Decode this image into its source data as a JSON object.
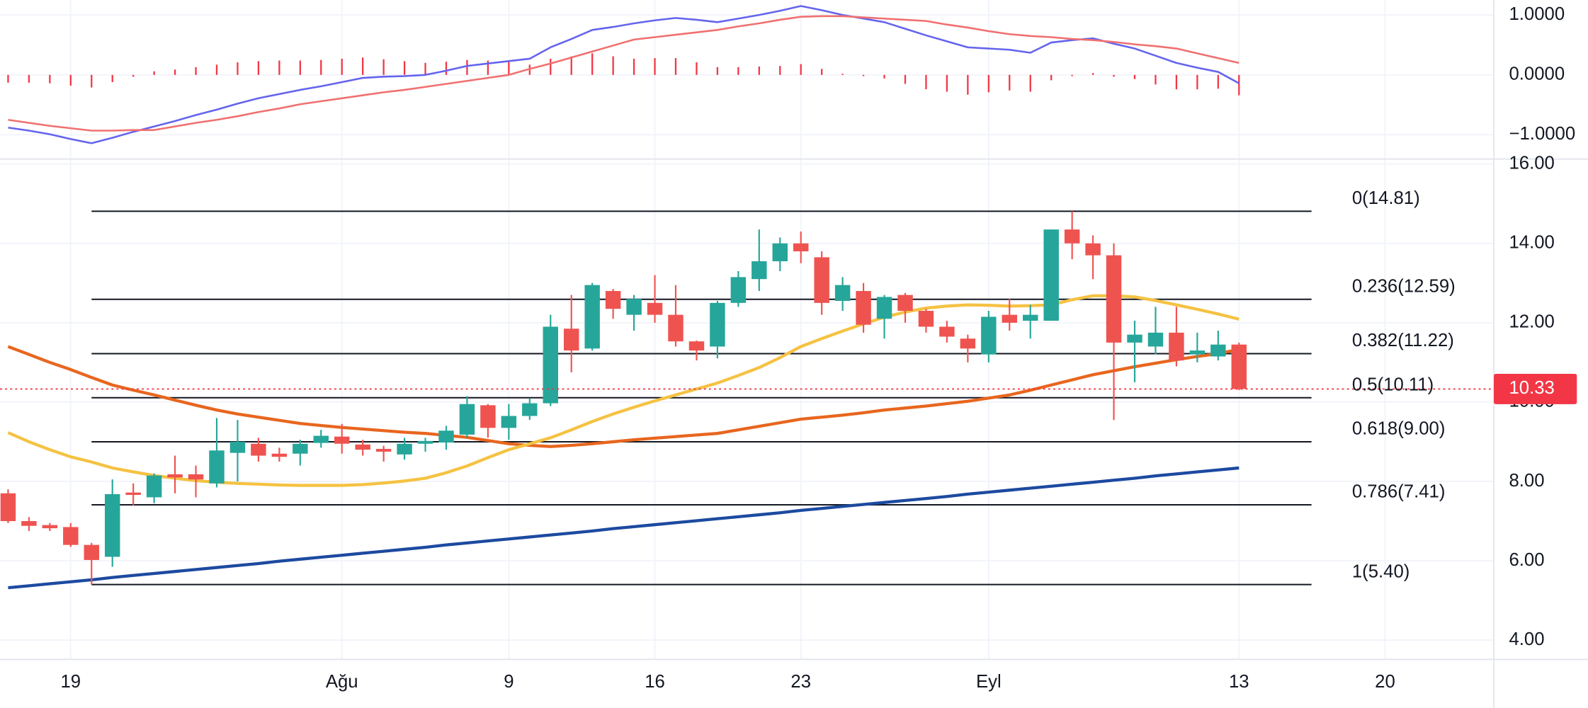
{
  "chart_data": {
    "type": "candlestick",
    "categories": [
      null,
      null,
      null,
      "19",
      null,
      null,
      null,
      null,
      null,
      null,
      null,
      null,
      null,
      null,
      null,
      null,
      "Ağu",
      null,
      null,
      null,
      null,
      null,
      null,
      null,
      "9",
      null,
      null,
      null,
      null,
      null,
      null,
      "16",
      null,
      null,
      null,
      null,
      null,
      null,
      "23",
      null,
      null,
      null,
      null,
      null,
      null,
      null,
      null,
      "Eyl",
      null,
      null,
      null,
      null,
      null,
      null,
      null,
      null,
      null,
      null,
      null,
      "13",
      null,
      null,
      null,
      null,
      null,
      null,
      "20",
      null,
      null,
      null,
      null
    ],
    "open": [
      7.7,
      7.0,
      6.9,
      6.85,
      6.4,
      6.1,
      7.72,
      7.6,
      8.18,
      8.18,
      7.95,
      8.72,
      8.95,
      8.7,
      8.7,
      8.97,
      9.13,
      8.93,
      8.82,
      8.68,
      8.95,
      8.98,
      9.18,
      9.92,
      9.35,
      9.65,
      9.97,
      11.85,
      11.35,
      12.8,
      12.2,
      12.5,
      12.2,
      11.53,
      11.4,
      12.5,
      13.1,
      13.55,
      14.0,
      13.65,
      12.55,
      12.8,
      12.1,
      12.7,
      12.3,
      11.9,
      11.6,
      11.2,
      12.2,
      12.05,
      12.05,
      14.35,
      14.0,
      13.7,
      11.5,
      11.4,
      11.75,
      11.2,
      11.15,
      11.45,
      null,
      null,
      null,
      null,
      null,
      null,
      null,
      null,
      null,
      null,
      null
    ],
    "high": [
      7.8,
      7.1,
      6.95,
      6.95,
      6.45,
      8.05,
      7.95,
      8.2,
      8.65,
      8.4,
      9.6,
      9.55,
      9.1,
      8.85,
      9.05,
      9.3,
      9.45,
      9.05,
      8.9,
      9.1,
      9.1,
      9.4,
      10.15,
      9.95,
      9.95,
      10.1,
      12.2,
      12.7,
      13.0,
      12.85,
      12.7,
      13.2,
      12.95,
      11.55,
      12.55,
      13.3,
      14.35,
      14.15,
      14.3,
      13.8,
      13.15,
      13.0,
      12.7,
      12.75,
      12.35,
      12.05,
      11.7,
      12.3,
      12.6,
      12.45,
      14.35,
      14.81,
      14.2,
      14.0,
      12.05,
      12.4,
      12.4,
      11.75,
      11.8,
      11.5,
      null,
      null,
      null,
      null,
      null,
      null,
      null,
      null,
      null,
      null,
      null
    ],
    "low": [
      6.95,
      6.75,
      6.75,
      6.35,
      5.4,
      5.85,
      7.4,
      7.45,
      7.7,
      7.6,
      7.85,
      8.0,
      8.5,
      8.5,
      8.4,
      8.85,
      8.7,
      8.65,
      8.5,
      8.55,
      8.75,
      8.8,
      9.1,
      9.1,
      9.05,
      9.55,
      9.9,
      10.75,
      11.3,
      12.1,
      11.8,
      12.0,
      11.4,
      11.05,
      11.1,
      12.4,
      12.8,
      13.3,
      13.5,
      12.2,
      12.3,
      11.75,
      11.6,
      12.0,
      11.75,
      11.5,
      11.0,
      11.0,
      11.8,
      11.6,
      12.05,
      13.6,
      13.1,
      9.55,
      10.5,
      11.2,
      10.9,
      11.0,
      11.05,
      10.3,
      null,
      null,
      null,
      null,
      null,
      null,
      null,
      null,
      null,
      null,
      null
    ],
    "close": [
      7.0,
      6.88,
      6.82,
      6.4,
      6.02,
      7.68,
      7.66,
      8.15,
      8.1,
      8.05,
      8.78,
      9.0,
      8.65,
      8.62,
      8.95,
      9.15,
      8.95,
      8.8,
      8.75,
      8.95,
      9.02,
      9.28,
      9.95,
      9.35,
      9.65,
      9.97,
      11.9,
      11.3,
      12.95,
      12.35,
      12.6,
      12.2,
      11.53,
      11.3,
      12.5,
      13.15,
      13.55,
      14.0,
      13.8,
      12.5,
      12.95,
      11.95,
      12.65,
      12.3,
      11.9,
      11.65,
      11.35,
      12.15,
      12.0,
      12.2,
      14.35,
      14.0,
      13.7,
      11.5,
      11.7,
      11.75,
      11.05,
      11.3,
      11.45,
      10.33,
      null,
      null,
      null,
      null,
      null,
      null,
      null,
      null,
      null,
      null,
      null
    ],
    "up_color": "#26a69a",
    "down_color": "#ef5350",
    "series": [
      {
        "color": "#1c4aa0",
        "values": [
          5.32,
          5.37,
          5.42,
          5.47,
          5.52,
          5.58,
          5.63,
          5.68,
          5.73,
          5.78,
          5.83,
          5.88,
          5.93,
          5.99,
          6.04,
          6.09,
          6.14,
          6.19,
          6.24,
          6.29,
          6.34,
          6.4,
          6.45,
          6.5,
          6.55,
          6.6,
          6.65,
          6.7,
          6.75,
          6.81,
          6.86,
          6.91,
          6.96,
          7.01,
          7.06,
          7.11,
          7.16,
          7.21,
          7.27,
          7.32,
          7.37,
          7.42,
          7.47,
          7.52,
          7.57,
          7.62,
          7.68,
          7.73,
          7.78,
          7.83,
          7.88,
          7.93,
          7.98,
          8.03,
          8.08,
          8.14,
          8.19,
          8.24,
          8.29,
          8.34,
          null,
          null,
          null,
          null,
          null,
          null,
          null,
          null,
          null,
          null,
          null
        ]
      },
      {
        "color": "#e8661e",
        "values": [
          11.4,
          11.2,
          11.0,
          10.82,
          10.62,
          10.43,
          10.3,
          10.18,
          10.05,
          9.92,
          9.8,
          9.7,
          9.62,
          9.54,
          9.46,
          9.41,
          9.36,
          9.32,
          9.28,
          9.24,
          9.21,
          9.16,
          9.11,
          9.03,
          8.95,
          8.91,
          8.88,
          8.91,
          8.95,
          9.0,
          9.05,
          9.09,
          9.13,
          9.17,
          9.21,
          9.3,
          9.39,
          9.48,
          9.57,
          9.62,
          9.67,
          9.73,
          9.8,
          9.85,
          9.9,
          9.96,
          10.02,
          10.1,
          10.18,
          10.3,
          10.43,
          10.56,
          10.69,
          10.79,
          10.89,
          10.98,
          11.07,
          11.15,
          11.22,
          11.33,
          null,
          null,
          null,
          null,
          null,
          null,
          null,
          null,
          null,
          null,
          null
        ]
      },
      {
        "color": "#f5c242",
        "values": [
          9.23,
          9.0,
          8.8,
          8.62,
          8.49,
          8.34,
          8.24,
          8.15,
          8.08,
          8.02,
          7.98,
          7.95,
          7.93,
          7.91,
          7.9,
          7.9,
          7.9,
          7.92,
          7.96,
          8.01,
          8.08,
          8.22,
          8.39,
          8.6,
          8.8,
          8.95,
          9.1,
          9.3,
          9.51,
          9.7,
          9.87,
          10.03,
          10.18,
          10.33,
          10.48,
          10.67,
          10.87,
          11.12,
          11.4,
          11.6,
          11.79,
          11.97,
          12.14,
          12.27,
          12.37,
          12.42,
          12.45,
          12.44,
          12.42,
          12.43,
          12.45,
          12.58,
          12.68,
          12.68,
          12.65,
          12.56,
          12.45,
          12.34,
          12.22,
          12.09,
          null,
          null,
          null,
          null,
          null,
          null,
          null,
          null,
          null,
          null,
          null
        ]
      }
    ],
    "fib_levels": [
      {
        "label": "0(14.81)",
        "value": 14.81
      },
      {
        "label": "0.236(12.59)",
        "value": 12.59
      },
      {
        "label": "0.382(11.22)",
        "value": 11.22
      },
      {
        "label": "0.5(10.11)",
        "value": 10.11
      },
      {
        "label": "0.618(9.00)",
        "value": 9.0
      },
      {
        "label": "0.786(7.41)",
        "value": 7.41
      },
      {
        "label": "1(5.40)",
        "value": 5.4
      }
    ],
    "last_price": 10.33,
    "last_price_color": "#f23645",
    "ylim": [
      3.54,
      16.05
    ],
    "yticks": [
      {
        "value": 4,
        "label": "4.00"
      },
      {
        "value": 6,
        "label": "6.00"
      },
      {
        "value": 8,
        "label": "8.00"
      },
      {
        "value": 10,
        "label": "10.00"
      },
      {
        "value": 12,
        "label": "12.00"
      },
      {
        "value": 14,
        "label": "14.00"
      },
      {
        "value": 16,
        "label": "16.00"
      }
    ],
    "grid": true,
    "macd": {
      "ylim": [
        -1.37,
        1.25
      ],
      "yticks": [
        {
          "value": 1,
          "label": "1.0000"
        },
        {
          "value": 0,
          "label": "0.0000"
        },
        {
          "value": -1,
          "label": "−1.0000"
        }
      ],
      "histogram": {
        "color": "#f23645",
        "values": [
          -0.13,
          -0.13,
          -0.14,
          -0.18,
          -0.21,
          -0.12,
          -0.03,
          0.06,
          0.09,
          0.13,
          0.17,
          0.21,
          0.23,
          0.24,
          0.24,
          0.25,
          0.27,
          0.29,
          0.26,
          0.23,
          0.2,
          0.22,
          0.25,
          0.24,
          0.23,
          0.17,
          0.27,
          0.31,
          0.36,
          0.31,
          0.27,
          0.28,
          0.28,
          0.21,
          0.13,
          0.13,
          0.14,
          0.15,
          0.18,
          0.1,
          0.02,
          -0.02,
          -0.06,
          -0.15,
          -0.24,
          -0.28,
          -0.33,
          -0.29,
          -0.26,
          -0.28,
          -0.09,
          -0.02,
          0.03,
          -0.03,
          -0.07,
          -0.16,
          -0.24,
          -0.24,
          -0.23,
          -0.34,
          null,
          null,
          null,
          null,
          null,
          null,
          null,
          null,
          null,
          null,
          null
        ]
      },
      "series": [
        {
          "color": "#6464ee",
          "values": [
            -0.88,
            -0.93,
            -0.99,
            -1.07,
            -1.14,
            -1.05,
            -0.95,
            -0.86,
            -0.77,
            -0.67,
            -0.58,
            -0.48,
            -0.39,
            -0.32,
            -0.25,
            -0.19,
            -0.12,
            -0.05,
            -0.03,
            -0.02,
            0.0,
            0.07,
            0.15,
            0.19,
            0.23,
            0.27,
            0.46,
            0.6,
            0.75,
            0.8,
            0.86,
            0.91,
            0.95,
            0.92,
            0.88,
            0.94,
            1.0,
            1.07,
            1.15,
            1.08,
            1.0,
            0.94,
            0.88,
            0.77,
            0.66,
            0.56,
            0.46,
            0.44,
            0.42,
            0.37,
            0.54,
            0.58,
            0.61,
            0.52,
            0.44,
            0.32,
            0.2,
            0.12,
            0.05,
            -0.14,
            null,
            null,
            null,
            null,
            null,
            null,
            null,
            null,
            null,
            null,
            null
          ]
        },
        {
          "color": "#f07070",
          "values": [
            -0.75,
            -0.8,
            -0.85,
            -0.89,
            -0.93,
            -0.93,
            -0.92,
            -0.92,
            -0.86,
            -0.8,
            -0.75,
            -0.69,
            -0.62,
            -0.56,
            -0.49,
            -0.44,
            -0.39,
            -0.34,
            -0.29,
            -0.25,
            -0.2,
            -0.15,
            -0.1,
            -0.05,
            0.0,
            0.1,
            0.19,
            0.29,
            0.39,
            0.49,
            0.59,
            0.63,
            0.67,
            0.71,
            0.75,
            0.81,
            0.86,
            0.92,
            0.97,
            0.98,
            0.98,
            0.96,
            0.94,
            0.92,
            0.9,
            0.84,
            0.79,
            0.73,
            0.68,
            0.65,
            0.63,
            0.6,
            0.58,
            0.55,
            0.51,
            0.48,
            0.44,
            0.36,
            0.28,
            0.2,
            null,
            null,
            null,
            null,
            null,
            null,
            null,
            null,
            null,
            null,
            null
          ]
        }
      ]
    }
  }
}
